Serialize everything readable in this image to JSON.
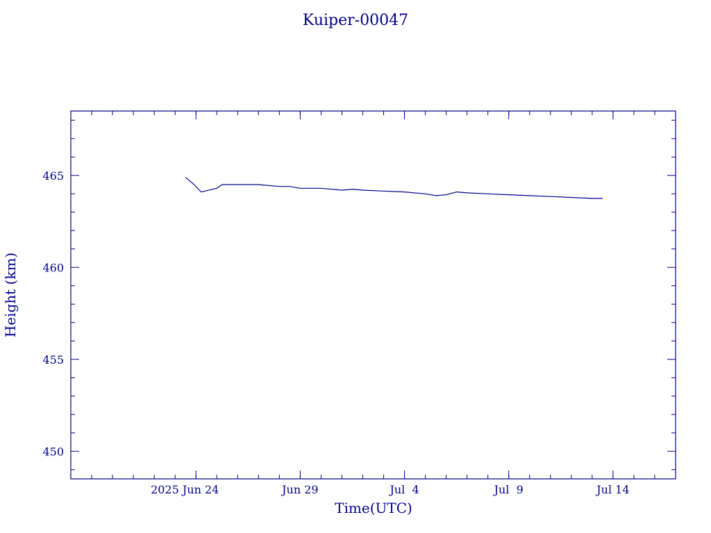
{
  "colors": {
    "ink": "#00008b",
    "background": "#ffffff"
  },
  "chart_data": {
    "type": "line",
    "title": "Kuiper-00047",
    "xlabel": "Time(UTC)",
    "ylabel": "Height (km)",
    "xlim": [
      "2025-06-18",
      "2025-07-17"
    ],
    "ylim": [
      448.5,
      468.5
    ],
    "x_ticks": [
      {
        "date": "2025-06-24",
        "label": "2025 Jun 24"
      },
      {
        "date": "2025-06-29",
        "label": "Jun 29"
      },
      {
        "date": "2025-07-04",
        "label": "Jul  4"
      },
      {
        "date": "2025-07-09",
        "label": "Jul  9"
      },
      {
        "date": "2025-07-14",
        "label": "Jul 14"
      }
    ],
    "x_minor_tick_interval_days": 1,
    "y_ticks": [
      450,
      455,
      460,
      465
    ],
    "y_minor_tick_interval": 1,
    "grid": false,
    "series": [
      {
        "x": [
          "2025-06-23T12:00",
          "2025-06-23T22:00",
          "2025-06-24T06:00",
          "2025-06-25T00:00",
          "2025-06-25T06:00",
          "2025-06-26T00:00",
          "2025-06-27T00:00",
          "2025-06-28T00:00",
          "2025-06-28T12:00",
          "2025-06-29T00:00",
          "2025-06-30T00:00",
          "2025-07-01T00:00",
          "2025-07-01T12:00",
          "2025-07-02T00:00",
          "2025-07-03T00:00",
          "2025-07-04T00:00",
          "2025-07-05T00:00",
          "2025-07-05T12:00",
          "2025-07-06T00:00",
          "2025-07-06T12:00",
          "2025-07-07T00:00",
          "2025-07-08T00:00",
          "2025-07-09T00:00",
          "2025-07-10T00:00",
          "2025-07-11T00:00",
          "2025-07-12T00:00",
          "2025-07-13T00:00",
          "2025-07-13T12:00"
        ],
        "y": [
          464.9,
          464.5,
          464.1,
          464.3,
          464.5,
          464.5,
          464.5,
          464.4,
          464.4,
          464.3,
          464.3,
          464.2,
          464.25,
          464.2,
          464.15,
          464.1,
          464.0,
          463.9,
          463.95,
          464.1,
          464.05,
          464.0,
          463.95,
          463.9,
          463.85,
          463.8,
          463.75,
          463.75
        ]
      }
    ]
  }
}
